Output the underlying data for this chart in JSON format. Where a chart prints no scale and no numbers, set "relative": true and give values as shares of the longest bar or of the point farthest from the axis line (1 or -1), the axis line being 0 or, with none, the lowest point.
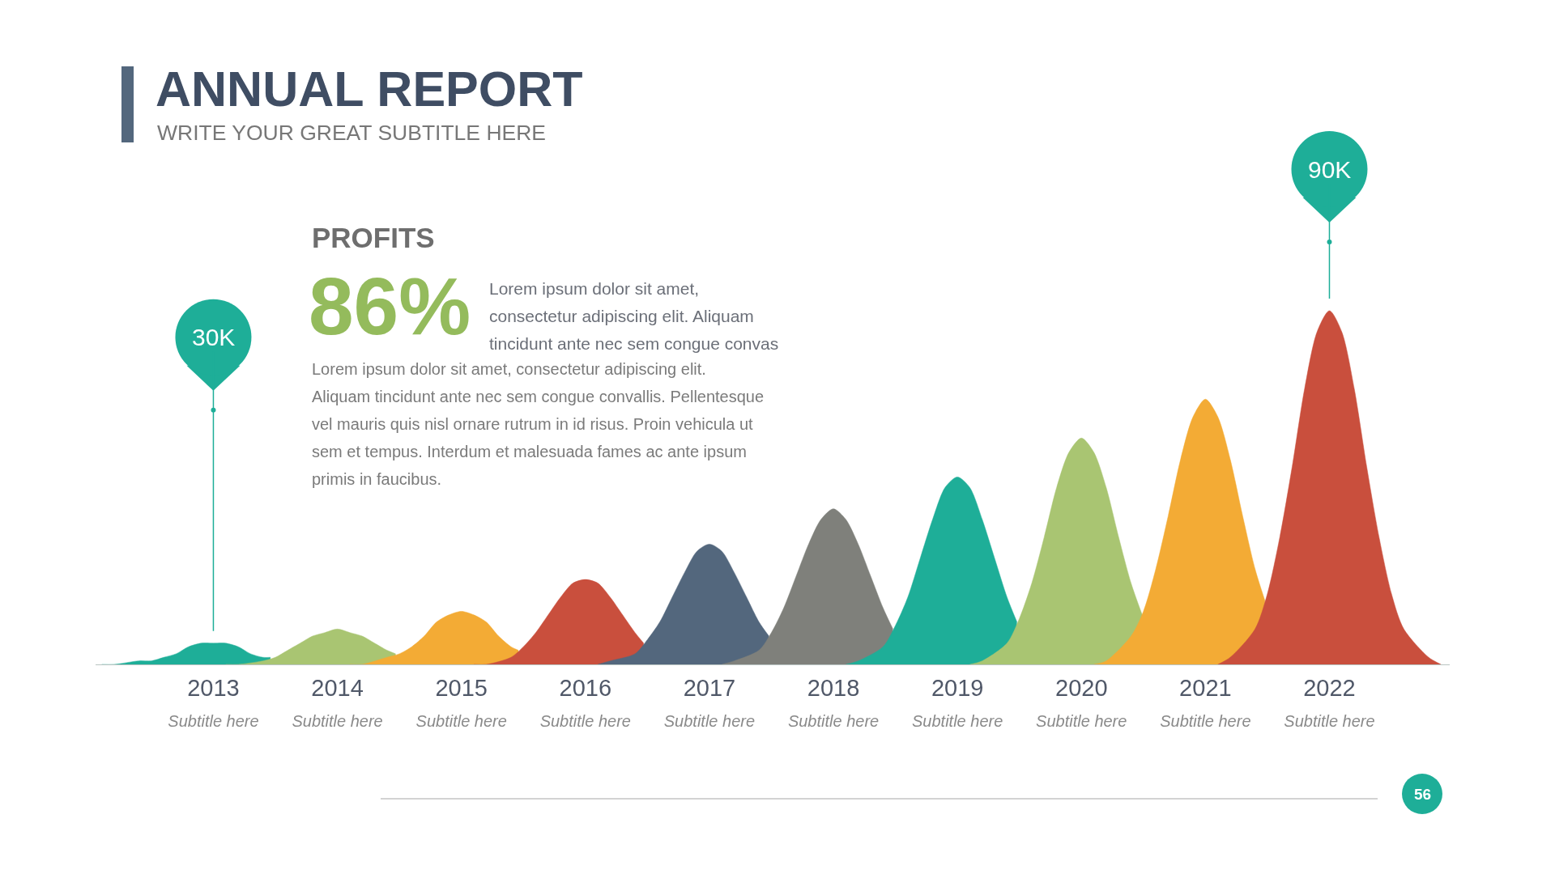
{
  "chart_data": {
    "type": "area",
    "relative": true,
    "title": "ANNUAL REPORT",
    "subtitle": "WRITE YOUR GREAT SUBTITLE HERE",
    "xlim": [
      2012.05,
      2022.97
    ],
    "xticks": [
      {
        "value": 2013,
        "label": "2013\nSubtitle here"
      },
      {
        "value": 2014,
        "label": "2014\nSubtitle here"
      },
      {
        "value": 2015,
        "label": "2015\nSubtitle here"
      },
      {
        "value": 2016,
        "label": "2016\nSubtitle here"
      },
      {
        "value": 2017,
        "label": "2017\nSubtitle here"
      },
      {
        "value": 2018,
        "label": "2018\nSubtitle here"
      },
      {
        "value": 2019,
        "label": "2019\nSubtitle here"
      },
      {
        "value": 2020,
        "label": "2020\nSubtitle here"
      },
      {
        "value": 2021,
        "label": "2021\nSubtitle here"
      },
      {
        "value": 2022,
        "label": "2022\nSubtitle here"
      }
    ],
    "series": [
      {
        "color": "#1eae98",
        "x": [
          2012.1,
          2012.2,
          2012.4,
          2012.5,
          2012.6,
          2012.7,
          2012.8,
          2012.9,
          2013,
          2013.1,
          2013.2,
          2013.3,
          2013.4,
          2013.46
        ],
        "values": [
          0,
          0,
          0.01,
          0.01,
          0.02,
          0.03,
          0.05,
          0.06,
          0.06,
          0.06,
          0.05,
          0.03,
          0.02,
          0.02
        ]
      },
      {
        "color": "#a9c572",
        "x": [
          2013.1,
          2013.2,
          2013.4,
          2013.5,
          2013.6,
          2013.7,
          2013.8,
          2013.9,
          2014,
          2014.1,
          2014.2,
          2014.3,
          2014.4,
          2014.47
        ],
        "values": [
          0,
          0,
          0.01,
          0.02,
          0.04,
          0.06,
          0.08,
          0.09,
          0.1,
          0.09,
          0.08,
          0.06,
          0.04,
          0.03
        ]
      },
      {
        "color": "#f3ab35",
        "x": [
          2014.1,
          2014.2,
          2014.4,
          2014.5,
          2014.6,
          2014.7,
          2014.8,
          2014.9,
          2015,
          2015.1,
          2015.2,
          2015.3,
          2015.4,
          2015.46
        ],
        "values": [
          0,
          0,
          0.02,
          0.03,
          0.05,
          0.08,
          0.12,
          0.14,
          0.15,
          0.14,
          0.12,
          0.08,
          0.05,
          0.04
        ]
      },
      {
        "color": "#c94f3d",
        "x": [
          2015.1,
          2015.2,
          2015.4,
          2015.5,
          2015.6,
          2015.7,
          2015.8,
          2015.9,
          2016,
          2016.1,
          2016.2,
          2016.3,
          2016.4,
          2016.47
        ],
        "values": [
          0,
          0,
          0.02,
          0.05,
          0.09,
          0.14,
          0.19,
          0.23,
          0.24,
          0.23,
          0.19,
          0.14,
          0.09,
          0.06
        ]
      },
      {
        "color": "#53677d",
        "x": [
          2016.1,
          2016.2,
          2016.4,
          2016.5,
          2016.6,
          2016.7,
          2016.8,
          2016.9,
          2017,
          2017.1,
          2017.2,
          2017.3,
          2017.4,
          2017.48
        ],
        "values": [
          0,
          0.01,
          0.03,
          0.07,
          0.12,
          0.19,
          0.26,
          0.32,
          0.34,
          0.32,
          0.26,
          0.19,
          0.12,
          0.08
        ]
      },
      {
        "color": "#7f807b",
        "x": [
          2017.1,
          2017.2,
          2017.4,
          2017.5,
          2017.6,
          2017.7,
          2017.8,
          2017.9,
          2018,
          2018.1,
          2018.2,
          2018.3,
          2018.4,
          2018.48
        ],
        "values": [
          0,
          0.01,
          0.04,
          0.09,
          0.16,
          0.25,
          0.34,
          0.41,
          0.44,
          0.41,
          0.34,
          0.25,
          0.16,
          0.1
        ]
      },
      {
        "color": "#1eae98",
        "x": [
          2018.1,
          2018.2,
          2018.4,
          2018.5,
          2018.6,
          2018.7,
          2018.8,
          2018.9,
          2019,
          2019.1,
          2019.2,
          2019.3,
          2019.4,
          2019.48
        ],
        "values": [
          0,
          0.01,
          0.05,
          0.11,
          0.19,
          0.3,
          0.41,
          0.5,
          0.53,
          0.5,
          0.41,
          0.3,
          0.19,
          0.12
        ]
      },
      {
        "color": "#a9c572",
        "x": [
          2019.1,
          2019.2,
          2019.4,
          2019.5,
          2019.6,
          2019.7,
          2019.8,
          2019.9,
          2020,
          2020.1,
          2020.2,
          2020.3,
          2020.4,
          2020.49
        ],
        "values": [
          0,
          0.01,
          0.06,
          0.13,
          0.23,
          0.36,
          0.5,
          0.6,
          0.64,
          0.6,
          0.5,
          0.36,
          0.23,
          0.14
        ]
      },
      {
        "color": "#f3ab35",
        "x": [
          2020.1,
          2020.2,
          2020.4,
          2020.5,
          2020.6,
          2020.7,
          2020.8,
          2020.9,
          2021,
          2021.1,
          2021.2,
          2021.3,
          2021.4,
          2021.48
        ],
        "values": [
          0,
          0.01,
          0.08,
          0.15,
          0.27,
          0.42,
          0.58,
          0.7,
          0.75,
          0.7,
          0.58,
          0.42,
          0.27,
          0.18
        ]
      },
      {
        "color": "#c94f3d",
        "x": [
          2021.1,
          2021.2,
          2021.4,
          2021.5,
          2021.6,
          2021.7,
          2021.8,
          2021.9,
          2022,
          2022.1,
          2022.2,
          2022.3,
          2022.4,
          2022.5,
          2022.6,
          2022.8,
          2022.9
        ],
        "values": [
          0,
          0.02,
          0.1,
          0.2,
          0.36,
          0.56,
          0.78,
          0.94,
          1,
          0.94,
          0.78,
          0.56,
          0.36,
          0.2,
          0.1,
          0.02,
          0
        ]
      }
    ],
    "annotations": [
      "PROFITS",
      "86%",
      "Lorem ipsum dolor sit amet,\nconsectetur adipiscing elit. Aliquam\ntincidunt ante nec sem congue convas",
      "Lorem ipsum dolor sit amet, consectetur adipiscing elit.\nAliquam tincidunt ante nec sem congue convallis. Pellentesque\nvel mauris quis nisl ornare rutrum in id risus. Proin vehicula ut\nsem et tempus. Interdum et malesuada fames ac ante ipsum\nprimis in faucibus.",
      "56",
      {
        "text": "30K",
        "x": 2013,
        "y": 0.06
      },
      {
        "text": "90K",
        "x": 2022,
        "y": 1
      }
    ]
  }
}
